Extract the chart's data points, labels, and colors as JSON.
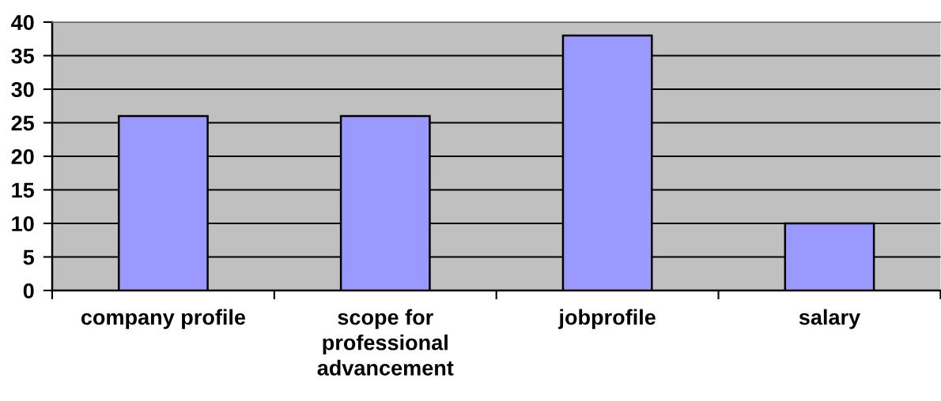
{
  "chart_data": {
    "type": "bar",
    "categories": [
      "company profile",
      "scope for\nprofessional\nadvancement",
      "jobprofile",
      "salary"
    ],
    "values": [
      26,
      26,
      38,
      10
    ],
    "color": "#9999ff",
    "ylim": [
      0,
      40
    ],
    "yticks": [
      0,
      5,
      10,
      15,
      20,
      25,
      30,
      35,
      40
    ],
    "grid": "y"
  }
}
